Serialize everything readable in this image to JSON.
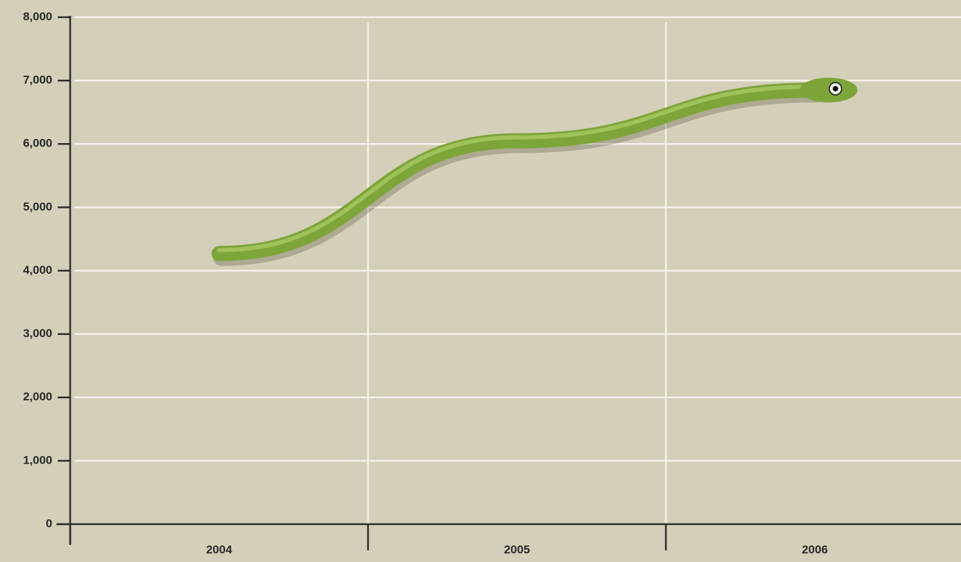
{
  "chart_data": {
    "type": "line",
    "categories": [
      "2004",
      "2005",
      "2006"
    ],
    "values": [
      4270,
      6050,
      6850
    ],
    "color": "#7ea53a",
    "ylim": [
      0,
      8000
    ],
    "yticks": [
      0,
      {
        "value": 1000,
        "label": "1,000"
      },
      {
        "value": 2000,
        "label": "2,000"
      },
      {
        "value": 3000,
        "label": "3,000"
      },
      {
        "value": 4000,
        "label": "4,000"
      },
      {
        "value": 5000,
        "label": "5,000"
      },
      {
        "value": 6000,
        "label": "6,000"
      },
      {
        "value": 7000,
        "label": "7,000"
      },
      {
        "value": 8000,
        "label": "8,000"
      }
    ],
    "grid": true
  }
}
